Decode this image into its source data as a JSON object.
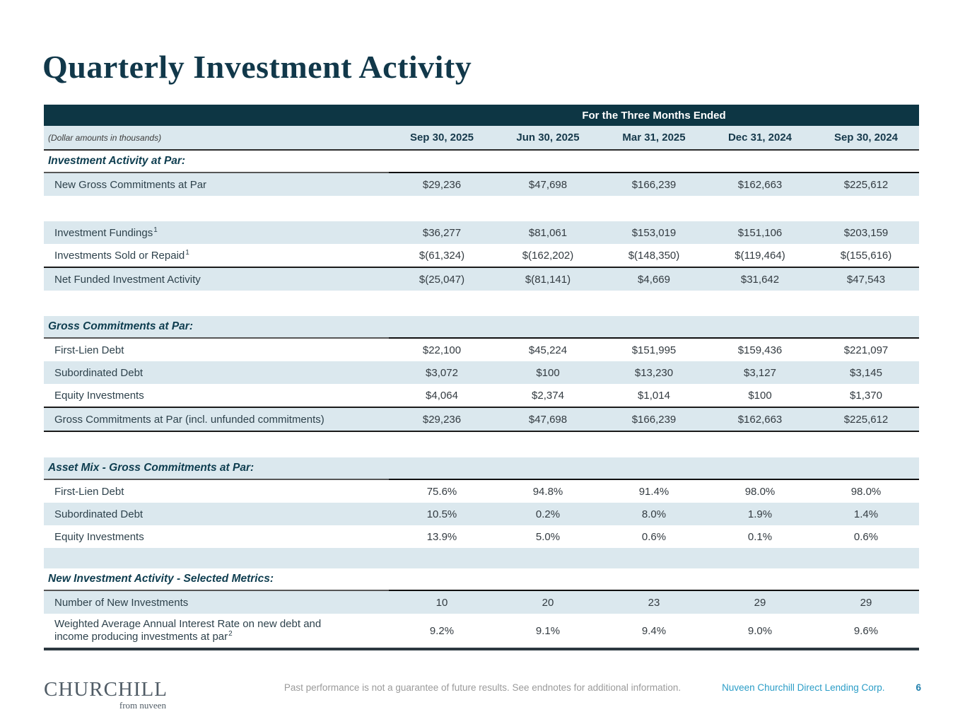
{
  "title": "Quarterly Investment Activity",
  "table": {
    "band_title": "For the Three Months Ended",
    "units_note": "(Dollar amounts in thousands)",
    "columns": [
      "Sep 30, 2025",
      "Jun 30, 2025",
      "Mar 31, 2025",
      "Dec 31, 2024",
      "Sep 30, 2024"
    ],
    "rows": [
      {
        "type": "section",
        "label": "Investment Activity at Par:",
        "shade": false
      },
      {
        "type": "data",
        "label": "New Gross Commitments at Par",
        "shade": true,
        "values": [
          "$29,236",
          "$47,698",
          "$166,239",
          "$162,663",
          "$225,612"
        ]
      },
      {
        "type": "gap"
      },
      {
        "type": "data",
        "label": "Investment Fundings",
        "sup": "1",
        "shade": true,
        "values": [
          "$36,277",
          "$81,061",
          "$153,019",
          "$151,106",
          "$203,159"
        ]
      },
      {
        "type": "data",
        "label": "Investments Sold or Repaid",
        "sup": "1",
        "shade": false,
        "values": [
          "$(61,324)",
          "$(162,202)",
          "$(148,350)",
          "$(119,464)",
          "$(155,616)"
        ]
      },
      {
        "type": "data",
        "label": "Net Funded Investment Activity",
        "shade": true,
        "top_border": true,
        "values": [
          "$(25,047)",
          "$(81,141)",
          "$4,669",
          "$31,642",
          "$47,543"
        ]
      },
      {
        "type": "gap"
      },
      {
        "type": "section",
        "label": "Gross Commitments at Par:",
        "shade": true
      },
      {
        "type": "data",
        "label": "First-Lien Debt",
        "shade": false,
        "values": [
          "$22,100",
          "$45,224",
          "$151,995",
          "$159,436",
          "$221,097"
        ]
      },
      {
        "type": "data",
        "label": "Subordinated Debt",
        "shade": true,
        "values": [
          "$3,072",
          "$100",
          "$13,230",
          "$3,127",
          "$3,145"
        ]
      },
      {
        "type": "data",
        "label": "Equity Investments",
        "shade": false,
        "values": [
          "$4,064",
          "$2,374",
          "$1,014",
          "$100",
          "$1,370"
        ]
      },
      {
        "type": "data",
        "label": "Gross Commitments at Par (incl. unfunded commitments)",
        "shade": true,
        "top_border": true,
        "bottom_border": true,
        "values": [
          "$29,236",
          "$47,698",
          "$166,239",
          "$162,663",
          "$225,612"
        ]
      },
      {
        "type": "gap"
      },
      {
        "type": "section",
        "label": "Asset Mix - Gross Commitments at Par:",
        "shade": true
      },
      {
        "type": "data",
        "label": "First-Lien Debt",
        "shade": false,
        "values": [
          "75.6%",
          "94.8%",
          "91.4%",
          "98.0%",
          "98.0%"
        ]
      },
      {
        "type": "data",
        "label": "Subordinated Debt",
        "shade": true,
        "values": [
          "10.5%",
          "0.2%",
          "8.0%",
          "1.9%",
          "1.4%"
        ]
      },
      {
        "type": "data",
        "label": "Equity Investments",
        "shade": false,
        "values": [
          "13.9%",
          "5.0%",
          "0.6%",
          "0.1%",
          "0.6%"
        ]
      },
      {
        "type": "empty",
        "shade": true
      },
      {
        "type": "section",
        "label": "New Investment Activity - Selected Metrics:",
        "shade": false
      },
      {
        "type": "data",
        "label": "Number of New Investments",
        "shade": true,
        "values": [
          "10",
          "20",
          "23",
          "29",
          "29"
        ]
      },
      {
        "type": "data",
        "label": "Weighted Average Annual Interest Rate on new debt and income producing investments at par",
        "sup": "2",
        "shade": false,
        "multiline": true,
        "values": [
          "9.2%",
          "9.1%",
          "9.4%",
          "9.0%",
          "9.6%"
        ]
      }
    ]
  },
  "footer": {
    "logo_main": "CHURCHILL",
    "logo_sub": "from nuveen",
    "disclaimer": "Past performance is not a guarantee of future results. See endnotes for additional information.",
    "company": "Nuveen Churchill Direct Lending Corp.",
    "page_number": "6"
  },
  "colors": {
    "band_bg": "#0d3644",
    "shade_bg": "#dbe8ee",
    "title_text": "#11384a",
    "section_text": "#0e3d4f",
    "body_text": "#2e424c",
    "company_link": "#2b9dc7",
    "page_number": "#1f7fad"
  }
}
